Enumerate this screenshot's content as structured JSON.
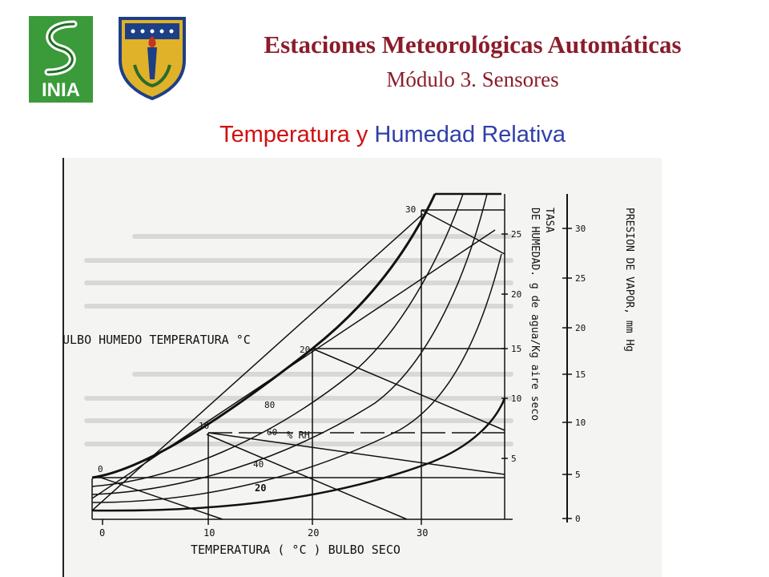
{
  "header": {
    "title": "Estaciones Meteorológicas Automáticas",
    "subtitle": "Módulo 3. Sensores",
    "section_title_part1": "Temperatura",
    "section_title_join": "y",
    "section_title_part2": "Humedad Relativa",
    "logo_text": "INIA"
  },
  "diagram": {
    "label_wet_bulb": "ULBO HUMEDO TEMPERATURA °C",
    "label_dry_bulb": "TEMPERATURA ( °C ) BULBO SECO",
    "label_rate_1": "TASA",
    "label_rate_2": "DE HUMEDAD. g de agua/Kg aire seco",
    "label_pressure": "PRESION DE VAPOR, mm Hg",
    "label_rh": "% RH",
    "x_ticks": [
      "0",
      "10",
      "20",
      "30"
    ],
    "wet_bulb_marks": [
      "0",
      "10",
      "20",
      "30"
    ],
    "rh_curve_labels": [
      "80",
      "60",
      "40",
      "20"
    ],
    "humidity_ticks": [
      "5",
      "10",
      "15",
      "20",
      "25"
    ],
    "pressure_ticks": [
      "0",
      "5",
      "10",
      "15",
      "20",
      "25",
      "30"
    ]
  }
}
